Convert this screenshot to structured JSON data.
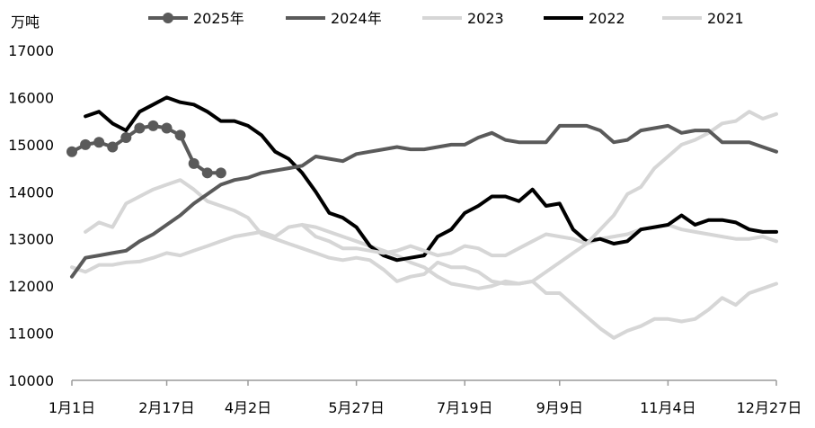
{
  "chart_data": {
    "type": "line",
    "title": "",
    "xlabel": "",
    "ylabel": "万吨",
    "ylim": [
      10000,
      17000
    ],
    "yticks": [
      10000,
      11000,
      12000,
      13000,
      14000,
      15000,
      16000,
      17000
    ],
    "x_tick_labels": [
      "1月1日",
      "2月17日",
      "4月2日",
      "5月27日",
      "7月19日",
      "9月9日",
      "11月4日",
      "12月27日"
    ],
    "x_tick_weeks": [
      0,
      7,
      13,
      21,
      29,
      36,
      44,
      52
    ],
    "x_unit": "week of year",
    "grid": false,
    "legend_position": "top",
    "series": [
      {
        "name": "2021",
        "color": "#d6d6d6",
        "width": 4,
        "markers": false,
        "x": [
          0,
          1,
          2,
          3,
          4,
          5,
          6,
          7,
          8,
          9,
          10,
          11,
          12,
          13,
          14,
          15,
          16,
          17,
          18,
          19,
          20,
          21,
          22,
          23,
          24,
          25,
          26,
          27,
          28,
          29,
          30,
          31,
          32,
          33,
          34,
          35,
          36,
          37,
          38,
          39,
          40,
          41,
          42,
          43,
          44,
          45,
          46,
          47,
          48,
          49,
          50,
          51,
          52
        ],
        "values": [
          12400,
          12300,
          12450,
          12450,
          12500,
          12520,
          12600,
          12700,
          12650,
          12750,
          12850,
          12950,
          13050,
          13100,
          13150,
          13050,
          13250,
          13300,
          13250,
          13150,
          13050,
          12950,
          12850,
          12750,
          12650,
          12500,
          12400,
          12200,
          12050,
          12000,
          11950,
          12000,
          12100,
          12050,
          12100,
          12300,
          12500,
          12700,
          12900,
          13000,
          13050,
          13100,
          13200,
          13250,
          13300,
          13200,
          13150,
          13100,
          13050,
          13000,
          13000,
          13050,
          12950
        ]
      },
      {
        "name": "2022",
        "color": "#000000",
        "width": 4,
        "markers": false,
        "x": [
          1,
          2,
          3,
          4,
          5,
          6,
          7,
          8,
          9,
          10,
          11,
          12,
          13,
          14,
          15,
          16,
          17,
          18,
          19,
          20,
          21,
          22,
          23,
          24,
          25,
          26,
          27,
          28,
          29,
          30,
          31,
          32,
          33,
          34,
          35,
          36,
          37,
          38,
          39,
          40,
          41,
          42,
          43,
          44,
          45,
          46,
          47,
          48,
          49,
          50,
          51,
          52
        ],
        "values": [
          15600,
          15700,
          15450,
          15300,
          15700,
          15850,
          16000,
          15900,
          15850,
          15700,
          15500,
          15500,
          15400,
          15200,
          14850,
          14700,
          14400,
          14000,
          13550,
          13450,
          13250,
          12850,
          12650,
          12550,
          12600,
          12650,
          13050,
          13200,
          13550,
          13700,
          13900,
          13900,
          13800,
          14050,
          13700,
          13750,
          13200,
          12950,
          13000,
          12900,
          12950,
          13200,
          13250,
          13300,
          13500,
          13300,
          13400,
          13400,
          13350,
          13200,
          13150,
          13150
        ]
      },
      {
        "name": "2023",
        "color": "#d6d6d6",
        "width": 4,
        "markers": false,
        "x": [
          1,
          2,
          3,
          4,
          5,
          6,
          7,
          8,
          9,
          10,
          11,
          12,
          13,
          14,
          15,
          16,
          17,
          18,
          19,
          20,
          21,
          22,
          23,
          24,
          25,
          26,
          27,
          28,
          29,
          30,
          31,
          32,
          33,
          34,
          35,
          36,
          37,
          38,
          39,
          40,
          41,
          42,
          43,
          44,
          45,
          46,
          47,
          48,
          49,
          50,
          51,
          52
        ],
        "values": [
          13150,
          13350,
          13250,
          13750,
          13900,
          14050,
          14150,
          14250,
          14050,
          13800,
          13700,
          13600,
          13450,
          13100,
          13000,
          12900,
          12800,
          12700,
          12600,
          12550,
          12600,
          12550,
          12350,
          12100,
          12200,
          12250,
          12500,
          12400,
          12400,
          12300,
          12100,
          12050,
          12050,
          12100,
          11850,
          11850,
          11600,
          11350,
          11100,
          10900,
          11050,
          11150,
          11300,
          11300,
          11250,
          11300,
          11500,
          11750,
          11600,
          11850,
          11950,
          12050
        ]
      },
      {
        "name": "2021",
        "color": "#d6d6d6",
        "width": 4,
        "markers": false,
        "x": [
          17,
          18,
          19,
          20,
          21,
          22,
          23,
          24,
          25,
          26,
          27,
          28,
          29,
          30,
          31,
          32,
          33,
          34,
          35,
          36,
          37,
          38,
          39,
          40,
          41,
          42,
          43,
          44,
          45,
          46,
          47,
          48,
          49,
          50,
          51,
          52
        ],
        "values": [
          13300,
          13050,
          12950,
          12800,
          12800,
          12750,
          12700,
          12750,
          12850,
          12750,
          12650,
          12700,
          12850,
          12800,
          12650,
          12650,
          12800,
          12950,
          13100,
          13050,
          13000,
          12900,
          13200,
          13500,
          13950,
          14100,
          14500,
          14750,
          15000,
          15100,
          15250,
          15450,
          15500,
          15700,
          15550,
          15650
        ]
      },
      {
        "name": "2024年",
        "color": "#5a5a5a",
        "width": 4,
        "markers": false,
        "x": [
          0,
          1,
          2,
          3,
          4,
          5,
          6,
          7,
          8,
          9,
          10,
          11,
          12,
          13,
          14,
          15,
          16,
          17,
          18,
          19,
          20,
          21,
          22,
          23,
          24,
          25,
          26,
          27,
          28,
          29,
          30,
          31,
          32,
          33,
          34,
          35,
          36,
          37,
          38,
          39,
          40,
          41,
          42,
          43,
          44,
          45,
          46,
          47,
          48,
          49,
          50,
          51,
          52
        ],
        "values": [
          12200,
          12600,
          12650,
          12700,
          12750,
          12950,
          13100,
          13300,
          13500,
          13750,
          13950,
          14150,
          14250,
          14300,
          14400,
          14450,
          14500,
          14550,
          14750,
          14700,
          14650,
          14800,
          14850,
          14900,
          14950,
          14900,
          14900,
          14950,
          15000,
          15000,
          15150,
          15250,
          15100,
          15050,
          15050,
          15050,
          15400,
          15400,
          15400,
          15300,
          15050,
          15100,
          15300,
          15350,
          15400,
          15250,
          15300,
          15300,
          15050,
          15050,
          15050,
          14950,
          14850
        ]
      },
      {
        "name": "2025年",
        "color": "#5a5a5a",
        "width": 4,
        "markers": true,
        "x": [
          0,
          1,
          2,
          3,
          4,
          5,
          6,
          7,
          8,
          9,
          10,
          11
        ],
        "values": [
          14850,
          15000,
          15050,
          14950,
          15150,
          15350,
          15400,
          15350,
          15200,
          14600,
          14400,
          14400
        ]
      }
    ],
    "legend": [
      {
        "name": "2025年",
        "color": "#5a5a5a",
        "markers": true
      },
      {
        "name": "2024年",
        "color": "#5a5a5a",
        "markers": false
      },
      {
        "name": "2023",
        "color": "#d6d6d6",
        "markers": false
      },
      {
        "name": "2022",
        "color": "#000000",
        "markers": false
      },
      {
        "name": "2021",
        "color": "#d6d6d6",
        "markers": false
      }
    ]
  }
}
